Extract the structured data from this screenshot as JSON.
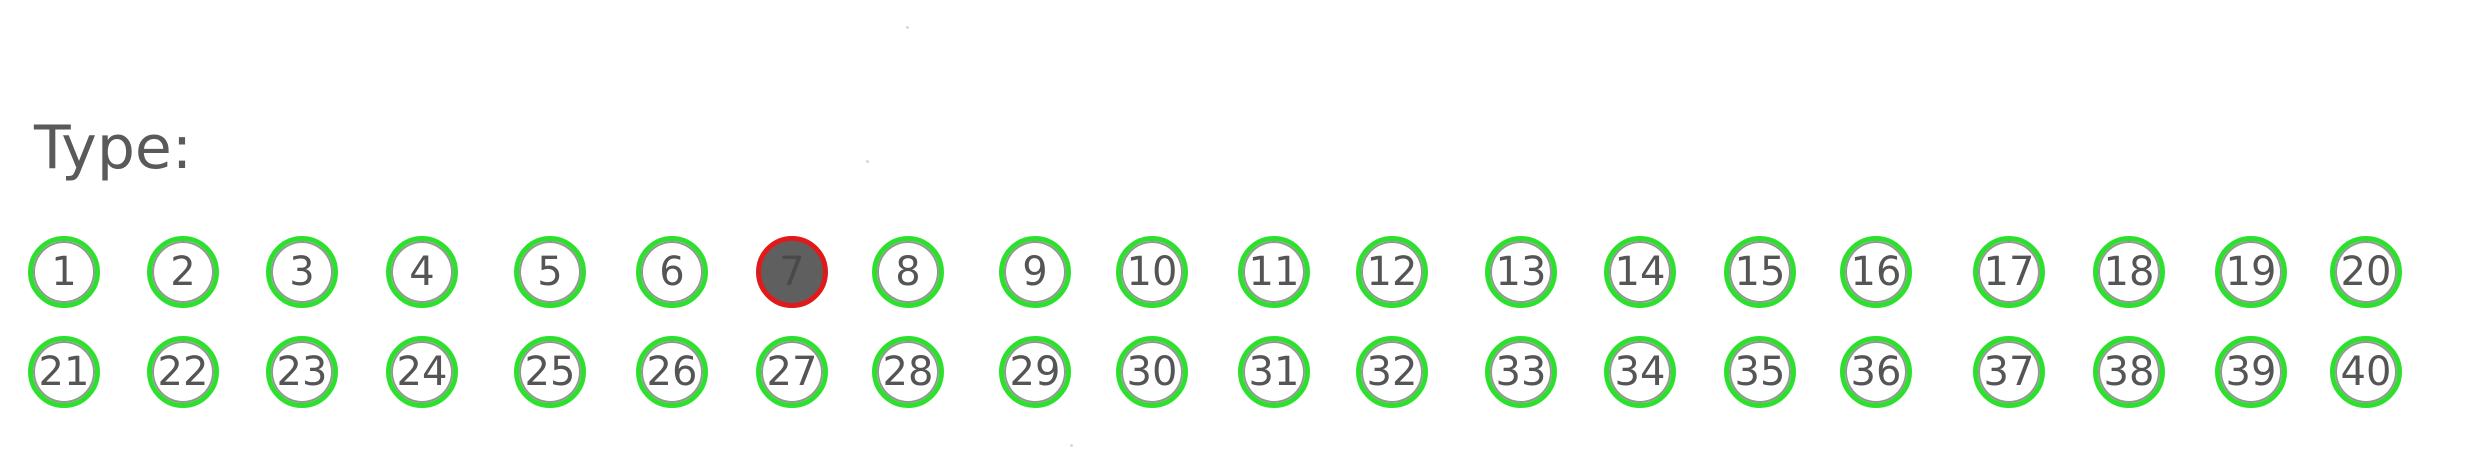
{
  "form": {
    "type_label": "Type:",
    "bubbles": [
      {
        "label": "1"
      },
      {
        "label": "2"
      },
      {
        "label": "3"
      },
      {
        "label": "4"
      },
      {
        "label": "5"
      },
      {
        "label": "6"
      },
      {
        "label": "7",
        "filled": true
      },
      {
        "label": "8"
      },
      {
        "label": "9"
      },
      {
        "label": "10"
      },
      {
        "label": "11"
      },
      {
        "label": "12"
      },
      {
        "label": "13"
      },
      {
        "label": "14"
      },
      {
        "label": "15"
      },
      {
        "label": "16"
      },
      {
        "label": "17"
      },
      {
        "label": "18"
      },
      {
        "label": "19"
      },
      {
        "label": "20"
      },
      {
        "label": "21"
      },
      {
        "label": "22"
      },
      {
        "label": "23"
      },
      {
        "label": "24"
      },
      {
        "label": "25"
      },
      {
        "label": "26"
      },
      {
        "label": "27"
      },
      {
        "label": "28"
      },
      {
        "label": "29"
      },
      {
        "label": "30"
      },
      {
        "label": "31"
      },
      {
        "label": "32"
      },
      {
        "label": "33"
      },
      {
        "label": "34"
      },
      {
        "label": "35"
      },
      {
        "label": "36"
      },
      {
        "label": "37"
      },
      {
        "label": "38"
      },
      {
        "label": "39"
      },
      {
        "label": "40"
      }
    ],
    "colors": {
      "bubble_outline": "#2ee02e",
      "selected_outline": "#e01a1a",
      "selected_fill": "#5f5f5f",
      "text": "#555555"
    }
  }
}
